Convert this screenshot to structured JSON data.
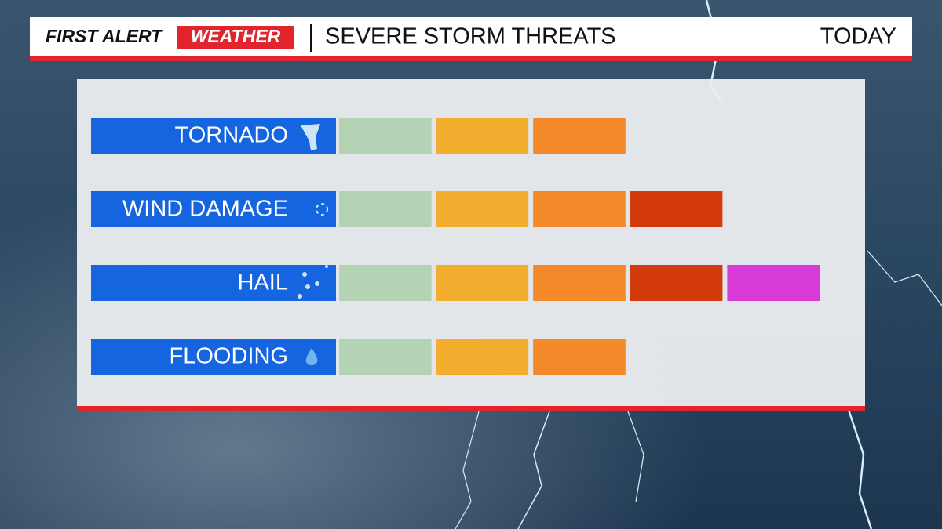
{
  "header": {
    "brand_first": "FIRST ALERT",
    "brand_second": "WEATHER",
    "title": "SEVERE STORM THREATS",
    "period": "TODAY"
  },
  "chart_data": {
    "type": "level-bar",
    "categories": [
      "TORNADO",
      "WIND DAMAGE",
      "HAIL",
      "FLOODING"
    ],
    "values": [
      3,
      4,
      5,
      3
    ],
    "xlim": [
      0,
      5
    ],
    "level_colors": [
      "#b3d3b4",
      "#f4ae2f",
      "#f4892a",
      "#d2390b",
      "#d83ad8"
    ],
    "label_color": "#1565e0"
  }
}
